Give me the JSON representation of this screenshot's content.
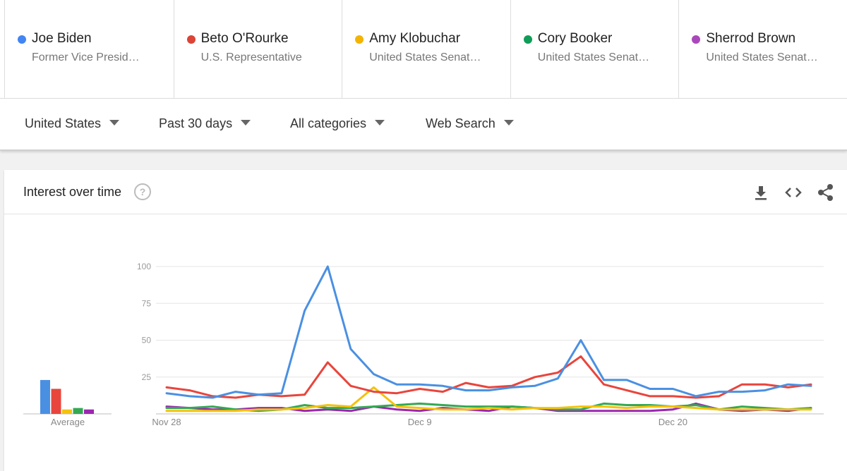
{
  "terms": [
    {
      "name": "Joe Biden",
      "subtitle": "Former Vice Presid…",
      "color": "#4285f4"
    },
    {
      "name": "Beto O'Rourke",
      "subtitle": "U.S. Representative",
      "color": "#db4437"
    },
    {
      "name": "Amy Klobuchar",
      "subtitle": "United States Senat…",
      "color": "#f4b400"
    },
    {
      "name": "Cory Booker",
      "subtitle": "United States Senat…",
      "color": "#0f9d58"
    },
    {
      "name": "Sherrod Brown",
      "subtitle": "United States Senat…",
      "color": "#ab47bc"
    }
  ],
  "filters": {
    "region": "United States",
    "time": "Past 30 days",
    "category": "All categories",
    "search_type": "Web Search"
  },
  "card": {
    "title": "Interest over time",
    "help_glyph": "?"
  },
  "icons": [
    "download-icon",
    "embed-code-icon",
    "share-icon"
  ],
  "chart_data": {
    "type": "line",
    "title": "Interest over time",
    "ylim": [
      0,
      100
    ],
    "yticks": [
      25,
      50,
      75,
      100
    ],
    "x_tick_labels": [
      {
        "index": 0,
        "label": "Nov 28"
      },
      {
        "index": 11,
        "label": "Dec 9"
      },
      {
        "index": 22,
        "label": "Dec 20"
      }
    ],
    "x_count": 29,
    "average_label": "Average",
    "series": [
      {
        "name": "Joe Biden",
        "color": "#4a90e2",
        "average": 23,
        "values": [
          14,
          12,
          11,
          15,
          13,
          14,
          70,
          100,
          44,
          27,
          20,
          20,
          19,
          16,
          16,
          18,
          19,
          24,
          50,
          23,
          23,
          17,
          17,
          12,
          15,
          15,
          16,
          20,
          19
        ]
      },
      {
        "name": "Beto O'Rourke",
        "color": "#e8453c",
        "average": 17,
        "values": [
          18,
          16,
          12,
          11,
          13,
          12,
          13,
          35,
          19,
          15,
          14,
          17,
          15,
          21,
          18,
          19,
          25,
          28,
          39,
          20,
          16,
          12,
          12,
          11,
          12,
          20,
          20,
          18,
          20
        ]
      },
      {
        "name": "Amy Klobuchar",
        "color": "#f4c20d",
        "average": 3,
        "values": [
          2,
          2,
          2,
          2,
          3,
          3,
          4,
          6,
          5,
          18,
          5,
          4,
          3,
          3,
          4,
          3,
          4,
          4,
          5,
          5,
          4,
          5,
          5,
          4,
          3,
          3,
          3,
          3,
          3
        ]
      },
      {
        "name": "Cory Booker",
        "color": "#34a853",
        "average": 4,
        "values": [
          4,
          4,
          5,
          3,
          2,
          3,
          6,
          4,
          4,
          5,
          6,
          7,
          6,
          5,
          5,
          5,
          4,
          3,
          3,
          7,
          6,
          6,
          5,
          6,
          3,
          5,
          4,
          3,
          4
        ]
      },
      {
        "name": "Sherrod Brown",
        "color": "#9c27b0",
        "average": 3,
        "values": [
          5,
          4,
          3,
          3,
          4,
          4,
          2,
          3,
          2,
          5,
          3,
          2,
          4,
          3,
          2,
          5,
          4,
          2,
          2,
          2,
          2,
          2,
          3,
          7,
          3,
          2,
          3,
          2,
          4
        ]
      }
    ]
  }
}
